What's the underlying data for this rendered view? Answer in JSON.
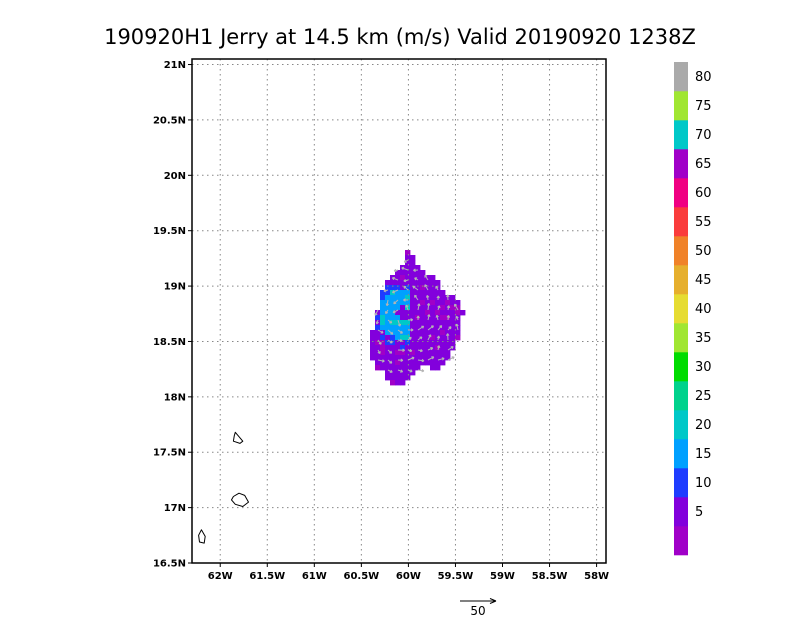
{
  "title": "190920H1 Jerry at 14.5 km (m/s) Valid 20190920 1238Z",
  "map": {
    "lon_range": [
      -62.3,
      -57.9
    ],
    "lat_range": [
      16.5,
      21.05
    ],
    "x_ticks": [
      {
        "value": -62.0,
        "label": "62W"
      },
      {
        "value": -61.5,
        "label": "61.5W"
      },
      {
        "value": -61.0,
        "label": "61W"
      },
      {
        "value": -60.5,
        "label": "60.5W"
      },
      {
        "value": -60.0,
        "label": "60W"
      },
      {
        "value": -59.5,
        "label": "59.5W"
      },
      {
        "value": -59.0,
        "label": "59W"
      },
      {
        "value": -58.5,
        "label": "58.5W"
      },
      {
        "value": -58.0,
        "label": "58W"
      }
    ],
    "y_ticks": [
      {
        "value": 16.5,
        "label": "16.5N"
      },
      {
        "value": 17.0,
        "label": "17N"
      },
      {
        "value": 17.5,
        "label": "17.5N"
      },
      {
        "value": 18.0,
        "label": "18N"
      },
      {
        "value": 18.5,
        "label": "18.5N"
      },
      {
        "value": 19.0,
        "label": "19N"
      },
      {
        "value": 19.5,
        "label": "19.5N"
      },
      {
        "value": 20.0,
        "label": "20N"
      },
      {
        "value": 20.5,
        "label": "20.5N"
      },
      {
        "value": 21.0,
        "label": "21N"
      }
    ],
    "grid": "dotted",
    "storm_center": {
      "lon": -60.05,
      "lat": 18.75
    },
    "islands": [
      {
        "name": "island-a",
        "points": [
          [
            -61.84,
            17.68
          ],
          [
            -61.8,
            17.64
          ],
          [
            -61.76,
            17.6
          ],
          [
            -61.79,
            17.58
          ],
          [
            -61.86,
            17.6
          ],
          [
            -61.85,
            17.65
          ]
        ]
      },
      {
        "name": "island-b",
        "points": [
          [
            -61.86,
            17.1
          ],
          [
            -61.8,
            17.13
          ],
          [
            -61.74,
            17.11
          ],
          [
            -61.7,
            17.05
          ],
          [
            -61.76,
            17.01
          ],
          [
            -61.84,
            17.03
          ],
          [
            -61.88,
            17.07
          ]
        ]
      },
      {
        "name": "island-c",
        "points": [
          [
            -62.2,
            16.8
          ],
          [
            -62.16,
            16.74
          ],
          [
            -62.17,
            16.68
          ],
          [
            -62.22,
            16.69
          ],
          [
            -62.23,
            16.75
          ]
        ]
      }
    ]
  },
  "colorbar": {
    "levels": [
      {
        "label": "",
        "color": "#a000c8"
      },
      {
        "label": "5",
        "color": "#8200dc"
      },
      {
        "label": "10",
        "color": "#1e3cff"
      },
      {
        "label": "15",
        "color": "#00a0ff"
      },
      {
        "label": "20",
        "color": "#00c8c8"
      },
      {
        "label": "25",
        "color": "#00d28c"
      },
      {
        "label": "30",
        "color": "#00dc00"
      },
      {
        "label": "35",
        "color": "#a0e632"
      },
      {
        "label": "40",
        "color": "#e6dc32"
      },
      {
        "label": "45",
        "color": "#e6af2d"
      },
      {
        "label": "50",
        "color": "#f08228"
      },
      {
        "label": "55",
        "color": "#fa3c3c"
      },
      {
        "label": "60",
        "color": "#f00082"
      },
      {
        "label": "65",
        "color": "#a000c8"
      },
      {
        "label": "70",
        "color": "#00c8c8"
      },
      {
        "label": "75",
        "color": "#a0e632"
      },
      {
        "label": "80",
        "color": "#aaaaaa"
      }
    ]
  },
  "reference_vector": {
    "label": "50",
    "speed": 50
  }
}
